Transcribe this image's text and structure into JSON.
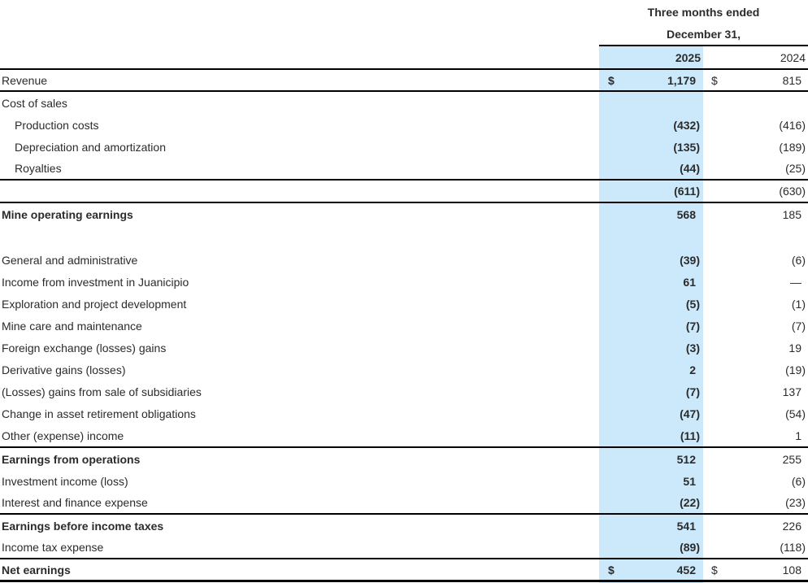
{
  "table": {
    "period_line1": "Three months ended",
    "period_line2": "December 31,",
    "years": {
      "y2025": "2025",
      "y2024": "2024"
    },
    "colors": {
      "highlight_2025": "#cbe9fb",
      "rule": "#000000",
      "text": "#2b2b2b"
    },
    "rows": [
      {
        "label": "Revenue",
        "d25": "$",
        "v25": "1,179",
        "d24": "$",
        "v24": "815"
      },
      {
        "label": "Cost of sales",
        "v25": "",
        "v24": ""
      },
      {
        "label": "Production costs",
        "v25": "(432)",
        "v24": "(416)"
      },
      {
        "label": "Depreciation and amortization",
        "v25": "(135)",
        "v24": "(189)"
      },
      {
        "label": "Royalties",
        "v25": "(44)",
        "v24": "(25)"
      },
      {
        "label": "",
        "v25": "(611)",
        "v24": "(630)"
      },
      {
        "label": "Mine operating earnings",
        "v25": "568",
        "v24": "185"
      },
      {
        "label": "",
        "v25": "",
        "v24": ""
      },
      {
        "label": "General and administrative",
        "v25": "(39)",
        "v24": "(6)"
      },
      {
        "label": "Income from investment in Juanicipio",
        "v25": "61",
        "v24": "—"
      },
      {
        "label": "Exploration and project development",
        "v25": "(5)",
        "v24": "(1)"
      },
      {
        "label": "Mine care and maintenance",
        "v25": "(7)",
        "v24": "(7)"
      },
      {
        "label": "Foreign exchange (losses) gains",
        "v25": "(3)",
        "v24": "19"
      },
      {
        "label": "Derivative gains (losses)",
        "v25": "2",
        "v24": "(19)"
      },
      {
        "label": "(Losses) gains from sale of subsidiaries",
        "v25": "(7)",
        "v24": "137"
      },
      {
        "label": "Change in asset retirement obligations",
        "v25": "(47)",
        "v24": "(54)"
      },
      {
        "label": "Other (expense) income",
        "v25": "(11)",
        "v24": "1"
      },
      {
        "label": "Earnings from operations",
        "v25": "512",
        "v24": "255"
      },
      {
        "label": "Investment income (loss)",
        "v25": "51",
        "v24": "(6)"
      },
      {
        "label": "Interest and finance expense",
        "v25": "(22)",
        "v24": "(23)"
      },
      {
        "label": "Earnings before income taxes",
        "v25": "541",
        "v24": "226"
      },
      {
        "label": "Income tax expense",
        "v25": "(89)",
        "v24": "(118)"
      },
      {
        "label": "Net earnings",
        "d25": "$",
        "v25": "452",
        "d24": "$",
        "v24": "108"
      }
    ]
  }
}
